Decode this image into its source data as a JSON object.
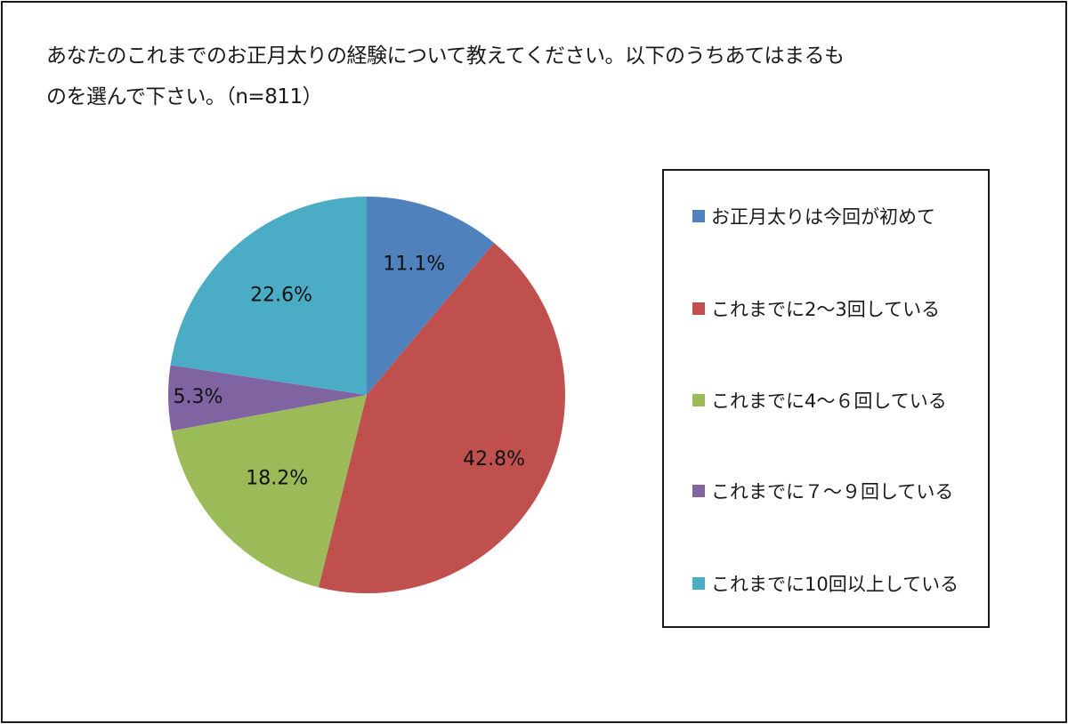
{
  "title": {
    "line1": "あなたのこれまでのお正月太りの経験について教えてください。以下のうちあてはまるも",
    "line2": "のを選んで下さい。（n=811）"
  },
  "chart_data": {
    "type": "pie",
    "title": "あなたのこれまでのお正月太りの経験について教えてください。以下のうちあてはまるものを選んで下さい。（n=811）",
    "n": 811,
    "start_angle_deg": 0,
    "direction": "clockwise",
    "legend_position": "right",
    "categories": [
      "お正月太りは今回が初めて",
      "これまでに2～3回している",
      "これまでに4～６回している",
      "これまでに７～９回している",
      "これまでに10回以上している"
    ],
    "values": [
      11.1,
      42.8,
      18.2,
      5.3,
      22.6
    ],
    "labels": [
      "11.1%",
      "42.8%",
      "18.2%",
      "5.3%",
      "22.6%"
    ],
    "colors": [
      "#4f81bd",
      "#c0504d",
      "#9bbb59",
      "#8064a2",
      "#4bacc6"
    ]
  },
  "legend": {
    "items": [
      {
        "label": "お正月太りは今回が初めて",
        "color": "#4f81bd"
      },
      {
        "label": "これまでに2～3回している",
        "color": "#c0504d"
      },
      {
        "label": "これまでに4～６回している",
        "color": "#9bbb59"
      },
      {
        "label": "これまでに７～９回している",
        "color": "#8064a2"
      },
      {
        "label": "これまでに10回以上している",
        "color": "#4bacc6"
      }
    ]
  }
}
